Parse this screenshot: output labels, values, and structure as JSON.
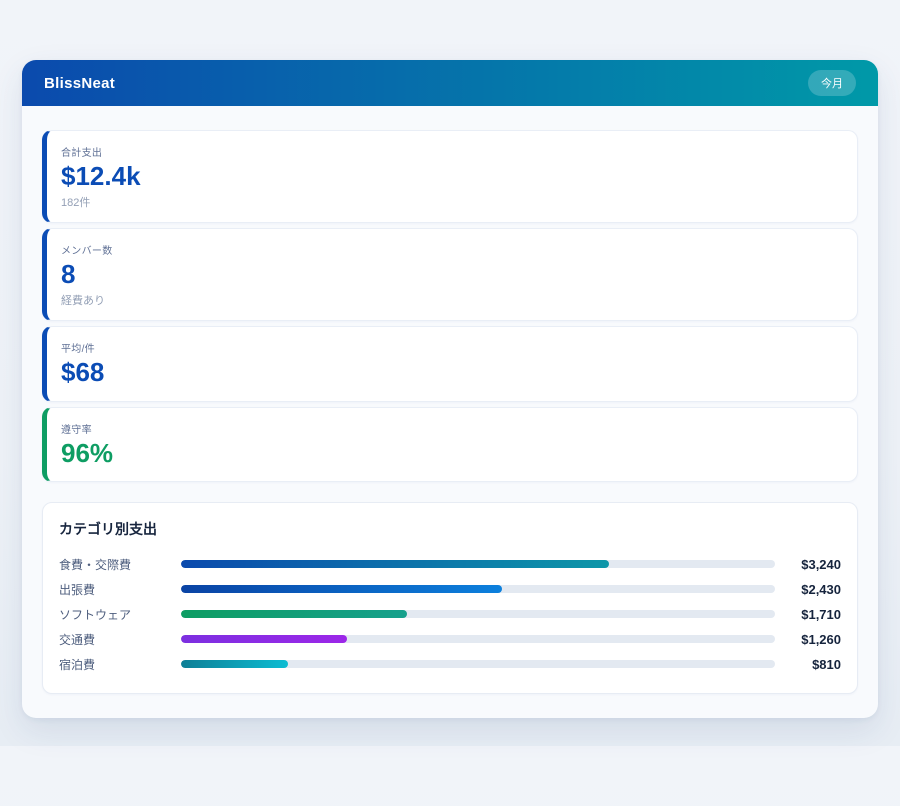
{
  "header": {
    "title": "BlissNeat",
    "period_badge": "今月",
    "gradient_from": "#0b4aad",
    "gradient_to": "#0099a8"
  },
  "stats": [
    {
      "label": "合計支出",
      "value": "$12.4k",
      "sub": "182件",
      "accent": "#0b4cb5",
      "value_color": "#0b4cb5"
    },
    {
      "label": "メンバー数",
      "value": "8",
      "sub": "経費あり",
      "accent": "#0b4cb5",
      "value_color": "#0b4cb5"
    },
    {
      "label": "平均/件",
      "value": "$68",
      "accent": "#0b4cb5",
      "value_color": "#0b4cb5"
    },
    {
      "label": "遵守率",
      "value": "96%",
      "accent": "#0e9d63",
      "value_color": "#0e9d63"
    }
  ],
  "categories": {
    "title": "カテゴリ別支出",
    "rows": [
      {
        "label": "食費・交際費",
        "amount": "$3,240",
        "percent": 72,
        "color_from": "#0b4aad",
        "color_to": "#0d96a8"
      },
      {
        "label": "出張費",
        "amount": "$2,430",
        "percent": 54,
        "color_from": "#0a43a4",
        "color_to": "#0c80dd"
      },
      {
        "label": "ソフトウェア",
        "amount": "$1,710",
        "percent": 38,
        "color_from": "#0e9d63",
        "color_to": "#16a08c"
      },
      {
        "label": "交通費",
        "amount": "$1,260",
        "percent": 28,
        "color_from": "#7c2fe0",
        "color_to": "#9c27e8"
      },
      {
        "label": "宿泊費",
        "amount": "$810",
        "percent": 18,
        "color_from": "#0e7f96",
        "color_to": "#0cbcd2"
      }
    ],
    "track_color": "#e3e9f1"
  },
  "chart_data": {
    "type": "bar",
    "orientation": "horizontal",
    "title": "カテゴリ別支出",
    "categories": [
      "食費・交際費",
      "出張費",
      "ソフトウェア",
      "交通費",
      "宿泊費"
    ],
    "values": [
      3240,
      2430,
      1710,
      1260,
      810
    ],
    "value_labels": [
      "$3,240",
      "$2,430",
      "$1,710",
      "$1,260",
      "$810"
    ],
    "xlim": [
      0,
      4500
    ],
    "grid": false,
    "legend": false
  }
}
